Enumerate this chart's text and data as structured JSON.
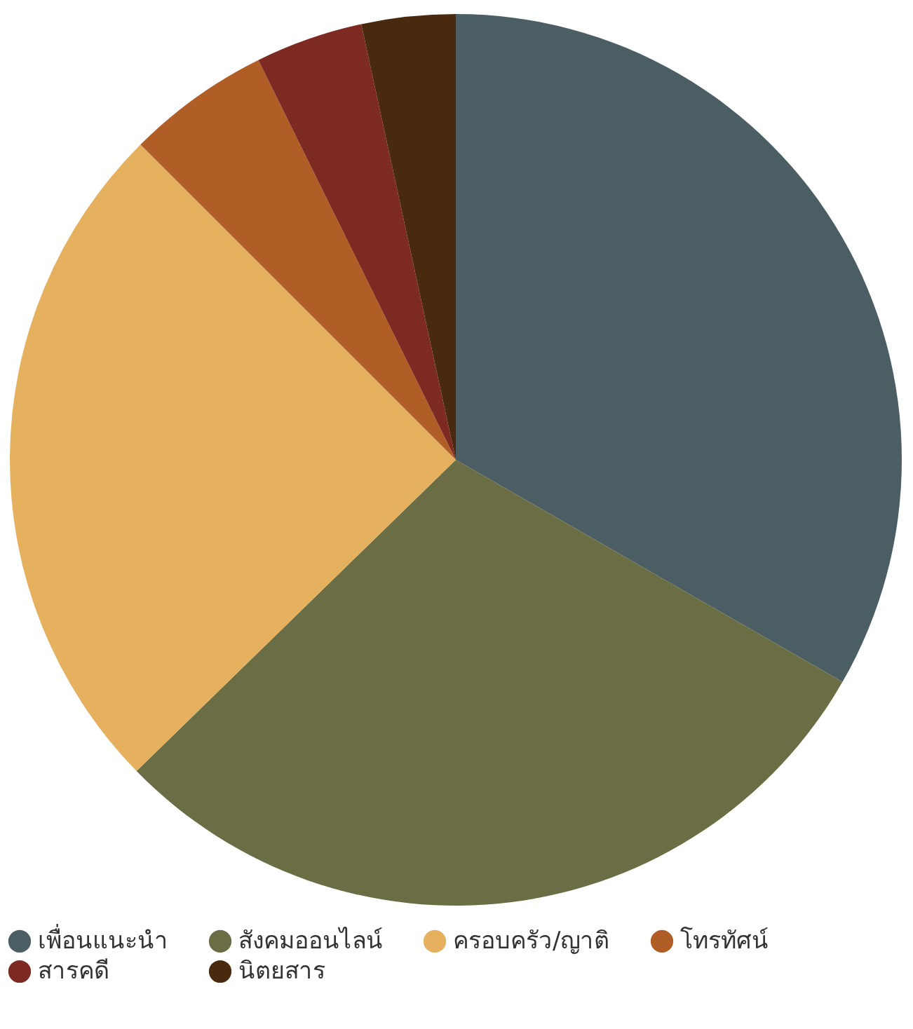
{
  "chart_data": {
    "type": "pie",
    "categories": [
      "เพื่อนแนะนำ",
      "สังคมออนไลน์",
      "ครอบครัว/ญาติ",
      "โทรทัศน์",
      "สารคดี",
      "นิตยสาร"
    ],
    "values": [
      33.3,
      29.4,
      24.8,
      5.2,
      3.9,
      3.4
    ],
    "colors": [
      "#4a5e63",
      "#6b6e44",
      "#e6b15f",
      "#b05e26",
      "#7d2a22",
      "#4a2a0e"
    ],
    "legend": "bottom"
  }
}
